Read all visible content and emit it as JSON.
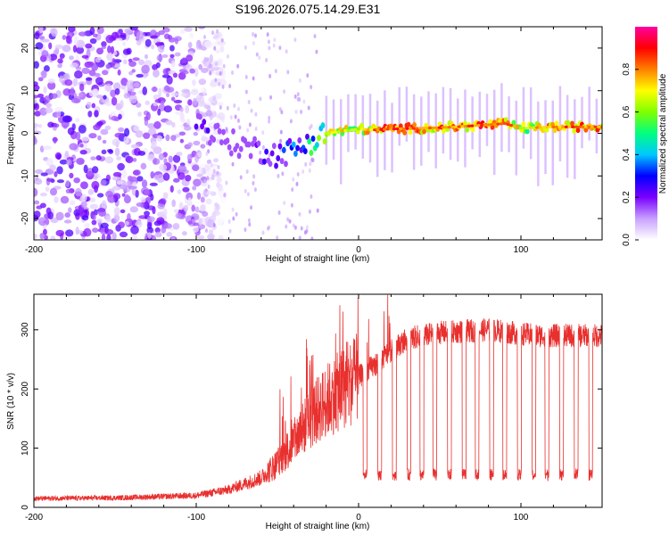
{
  "figure_title": "S196.2026.075.14.29.E31",
  "colors": {
    "snr_line": "#e8302e",
    "axis": "#000000",
    "ridge_low": "#0a1aff",
    "ridge_high": "#ff2020"
  },
  "chart_data": [
    {
      "type": "heatmap",
      "id": "spectrogram",
      "xlabel": "Height of straight line (km)",
      "ylabel": "Frequency (Hz)",
      "xlim": [
        -200,
        150
      ],
      "ylim": [
        -25,
        25
      ],
      "xticks": [
        -200,
        -100,
        0,
        100
      ],
      "yticks": [
        -20,
        -10,
        0,
        10,
        20
      ],
      "colorbar": {
        "label": "Normalized spectral amplitude",
        "range": [
          0.0,
          1.0
        ],
        "ticks": [
          0.0,
          0.2,
          0.4,
          0.6,
          0.8
        ],
        "tick_labels": [
          "0.0",
          "0.2",
          "0.4",
          "0.6",
          "0.8"
        ],
        "colormap": [
          "#ffffff",
          "#c8a0ff",
          "#7a00ff",
          "#0000ff",
          "#00c8ff",
          "#00ff80",
          "#80ff00",
          "#ffff00",
          "#ff8000",
          "#ff0000",
          "#ff00a0"
        ]
      },
      "ridge": {
        "description": "dominant frequency vs height",
        "x": [
          -100,
          -90,
          -80,
          -70,
          -60,
          -50,
          -40,
          -30,
          -20,
          -10,
          0,
          10,
          20,
          40,
          60,
          80,
          90,
          100,
          120,
          150
        ],
        "frequency": [
          3,
          0,
          -2,
          -3,
          -4,
          -5,
          -4,
          -2,
          0,
          0.5,
          1,
          0.8,
          1,
          1.2,
          1.5,
          2,
          2.3,
          1.2,
          1.5,
          1.5
        ],
        "amplitude": [
          0.25,
          0.2,
          0.15,
          0.15,
          0.2,
          0.25,
          0.35,
          0.5,
          0.7,
          0.75,
          0.7,
          0.85,
          0.9,
          0.85,
          0.85,
          0.9,
          0.9,
          0.7,
          0.85,
          0.85
        ]
      },
      "noise_region": {
        "x_range": [
          -200,
          -95
        ],
        "frequency_range": [
          -25,
          25
        ],
        "amplitude_range": [
          0.02,
          0.25
        ]
      }
    },
    {
      "type": "line",
      "id": "snr",
      "xlabel": "Height of straight line (km)",
      "ylabel": "SNR (10 * v/v)",
      "xlim": [
        -200,
        150
      ],
      "ylim": [
        0,
        360
      ],
      "xticks": [
        -200,
        -100,
        0,
        100
      ],
      "yticks": [
        0,
        100,
        200,
        300
      ],
      "series": [
        {
          "name": "SNR",
          "envelope_x": [
            -200,
            -150,
            -100,
            -80,
            -60,
            -50,
            -40,
            -30,
            -20,
            -10,
            0,
            10,
            20,
            30,
            50,
            80,
            110,
            150
          ],
          "envelope_y": [
            15,
            16,
            20,
            30,
            50,
            75,
            110,
            150,
            180,
            200,
            220,
            240,
            265,
            285,
            295,
            300,
            290,
            290
          ],
          "dropouts_x": [
            4,
            13,
            22,
            31,
            39,
            47,
            56,
            65,
            73,
            82,
            90,
            99,
            108,
            116,
            125,
            134,
            143
          ],
          "dropout_level": 45
        }
      ]
    }
  ]
}
